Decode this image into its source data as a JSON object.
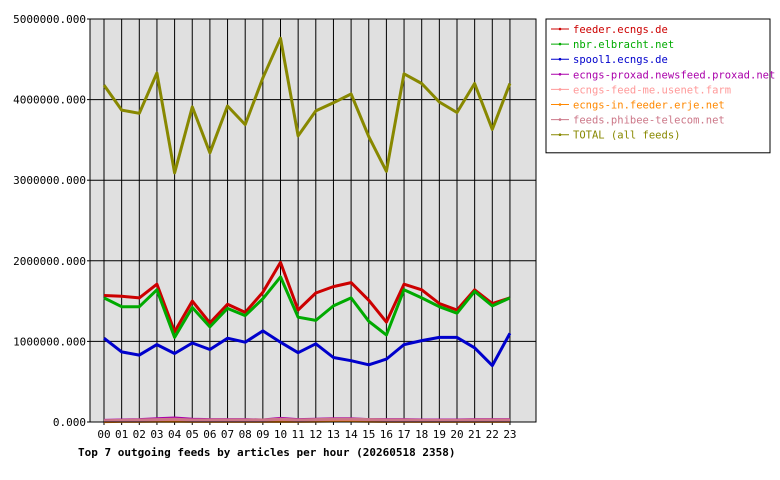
{
  "chart_data": {
    "type": "line",
    "title": "Top 7 outgoing feeds by articles per hour (20260518 2358)",
    "categories": [
      "00",
      "01",
      "02",
      "03",
      "04",
      "05",
      "06",
      "07",
      "08",
      "09",
      "10",
      "11",
      "12",
      "13",
      "14",
      "15",
      "16",
      "17",
      "18",
      "19",
      "20",
      "21",
      "22",
      "23"
    ],
    "ylim": [
      0,
      5000000
    ],
    "y_ticks": [
      0,
      1000000,
      2000000,
      3000000,
      4000000,
      5000000
    ],
    "y_tick_labels": [
      "0.000",
      "1000000.000",
      "2000000.000",
      "3000000.000",
      "4000000.000",
      "5000000.000"
    ],
    "grid": true,
    "legend_position": "right",
    "series": [
      {
        "name": "feeder.ecngs.de",
        "color": "#cc0000",
        "values": [
          1570000,
          1560000,
          1540000,
          1710000,
          1120000,
          1500000,
          1230000,
          1460000,
          1360000,
          1610000,
          1980000,
          1390000,
          1600000,
          1680000,
          1730000,
          1510000,
          1240000,
          1710000,
          1640000,
          1470000,
          1390000,
          1640000,
          1470000,
          1540000
        ]
      },
      {
        "name": "nbr.elbracht.net",
        "color": "#00aa00",
        "values": [
          1540000,
          1430000,
          1430000,
          1640000,
          1050000,
          1420000,
          1180000,
          1410000,
          1320000,
          1530000,
          1800000,
          1300000,
          1260000,
          1440000,
          1540000,
          1250000,
          1080000,
          1640000,
          1540000,
          1430000,
          1350000,
          1620000,
          1440000,
          1540000
        ]
      },
      {
        "name": "spool1.ecngs.de",
        "color": "#0000cc",
        "values": [
          1040000,
          870000,
          830000,
          960000,
          850000,
          980000,
          900000,
          1040000,
          990000,
          1130000,
          990000,
          860000,
          970000,
          800000,
          760000,
          710000,
          780000,
          960000,
          1010000,
          1050000,
          1050000,
          920000,
          700000,
          1100000
        ]
      },
      {
        "name": "ecngs-proxad.newsfeed.proxad.net",
        "color": "#aa00aa",
        "values": [
          20000,
          25000,
          30000,
          40000,
          50000,
          35000,
          30000,
          30000,
          30000,
          25000,
          45000,
          30000,
          35000,
          40000,
          40000,
          30000,
          30000,
          30000,
          25000,
          25000,
          25000,
          30000,
          30000,
          30000
        ]
      },
      {
        "name": "ecngs-feed-me.usenet.farm",
        "color": "#ff9999",
        "values": [
          10000,
          15000,
          15000,
          20000,
          20000,
          15000,
          15000,
          15000,
          15000,
          15000,
          20000,
          15000,
          20000,
          25000,
          25000,
          20000,
          15000,
          15000,
          15000,
          15000,
          15000,
          15000,
          15000,
          15000
        ]
      },
      {
        "name": "ecngs-in.feeder.erje.net",
        "color": "#ff8800",
        "values": [
          5000,
          8000,
          8000,
          10000,
          10000,
          8000,
          8000,
          8000,
          8000,
          8000,
          10000,
          8000,
          10000,
          12000,
          12000,
          10000,
          8000,
          8000,
          8000,
          8000,
          8000,
          8000,
          8000,
          8000
        ]
      },
      {
        "name": "feeds.phibee-telecom.net",
        "color": "#cc7788",
        "values": [
          15000,
          20000,
          25000,
          30000,
          35000,
          25000,
          25000,
          25000,
          25000,
          25000,
          35000,
          25000,
          30000,
          35000,
          35000,
          30000,
          25000,
          25000,
          20000,
          20000,
          20000,
          25000,
          25000,
          25000
        ]
      },
      {
        "name": "TOTAL (all feeds)",
        "color": "#888800",
        "values": [
          4180000,
          3870000,
          3830000,
          4330000,
          3090000,
          3910000,
          3340000,
          3920000,
          3690000,
          4270000,
          4760000,
          3550000,
          3860000,
          3960000,
          4070000,
          3540000,
          3110000,
          4320000,
          4200000,
          3970000,
          3840000,
          4200000,
          3630000,
          4200000
        ]
      }
    ]
  }
}
